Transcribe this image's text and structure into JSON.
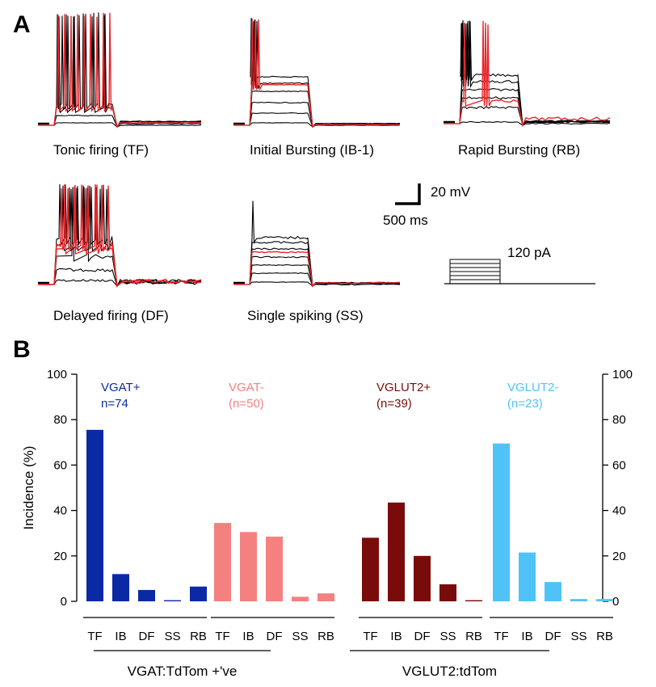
{
  "panel_a": {
    "label": "A",
    "traces": [
      {
        "name": "Tonic firing (TF)",
        "pattern": "tonic"
      },
      {
        "name": "Initial Bursting (IB-1)",
        "pattern": "initial-burst"
      },
      {
        "name": "Rapid Bursting (RB)",
        "pattern": "rapid-burst"
      },
      {
        "name": "Delayed firing (DF)",
        "pattern": "delayed"
      },
      {
        "name": "Single spiking (SS)",
        "pattern": "single"
      }
    ],
    "scale_bar": {
      "voltage": "20 mV",
      "time": "500 ms"
    },
    "stimulus": {
      "label": "120 pA"
    }
  },
  "panel_b": {
    "label": "B"
  },
  "colors": {
    "black_trace": "#000000",
    "red_trace": "#e8262b",
    "vgat_pos": "#0a2aa5",
    "vgat_neg": "#f58080",
    "vglut2_pos": "#7a0b0b",
    "vglut2_neg": "#4fc3f7"
  },
  "chart_data": {
    "type": "bar",
    "title": "",
    "ylabel": "Incidence (%)",
    "ylim": [
      0,
      100
    ],
    "yticks": [
      0,
      20,
      40,
      60,
      80,
      100
    ],
    "grid": false,
    "categories": [
      "TF",
      "IB",
      "DF",
      "SS",
      "RB"
    ],
    "series": [
      {
        "name": "VGAT+",
        "n_label": "n=74",
        "color": "#0a2aa5",
        "values": [
          75.5,
          12,
          5,
          0.5,
          6.5
        ]
      },
      {
        "name": "VGAT-",
        "n_label": "(n=50)",
        "color": "#f58080",
        "values": [
          34.5,
          30.5,
          28.5,
          2,
          3.5
        ]
      },
      {
        "name": "VGLUT2+",
        "n_label": "(n=39)",
        "color": "#7a0b0b",
        "values": [
          28,
          43.5,
          20,
          7.5,
          0.5
        ]
      },
      {
        "name": "VGLUT2-",
        "n_label": "(n=23)",
        "color": "#4fc3f7",
        "values": [
          69.5,
          21.5,
          8.5,
          1,
          1
        ]
      }
    ],
    "groups": [
      {
        "label": "VGAT:TdTom +'ve",
        "series": [
          "VGAT+",
          "VGAT-"
        ]
      },
      {
        "label": "VGLUT2:tdTom",
        "series": [
          "VGLUT2+",
          "VGLUT2-"
        ]
      }
    ]
  }
}
